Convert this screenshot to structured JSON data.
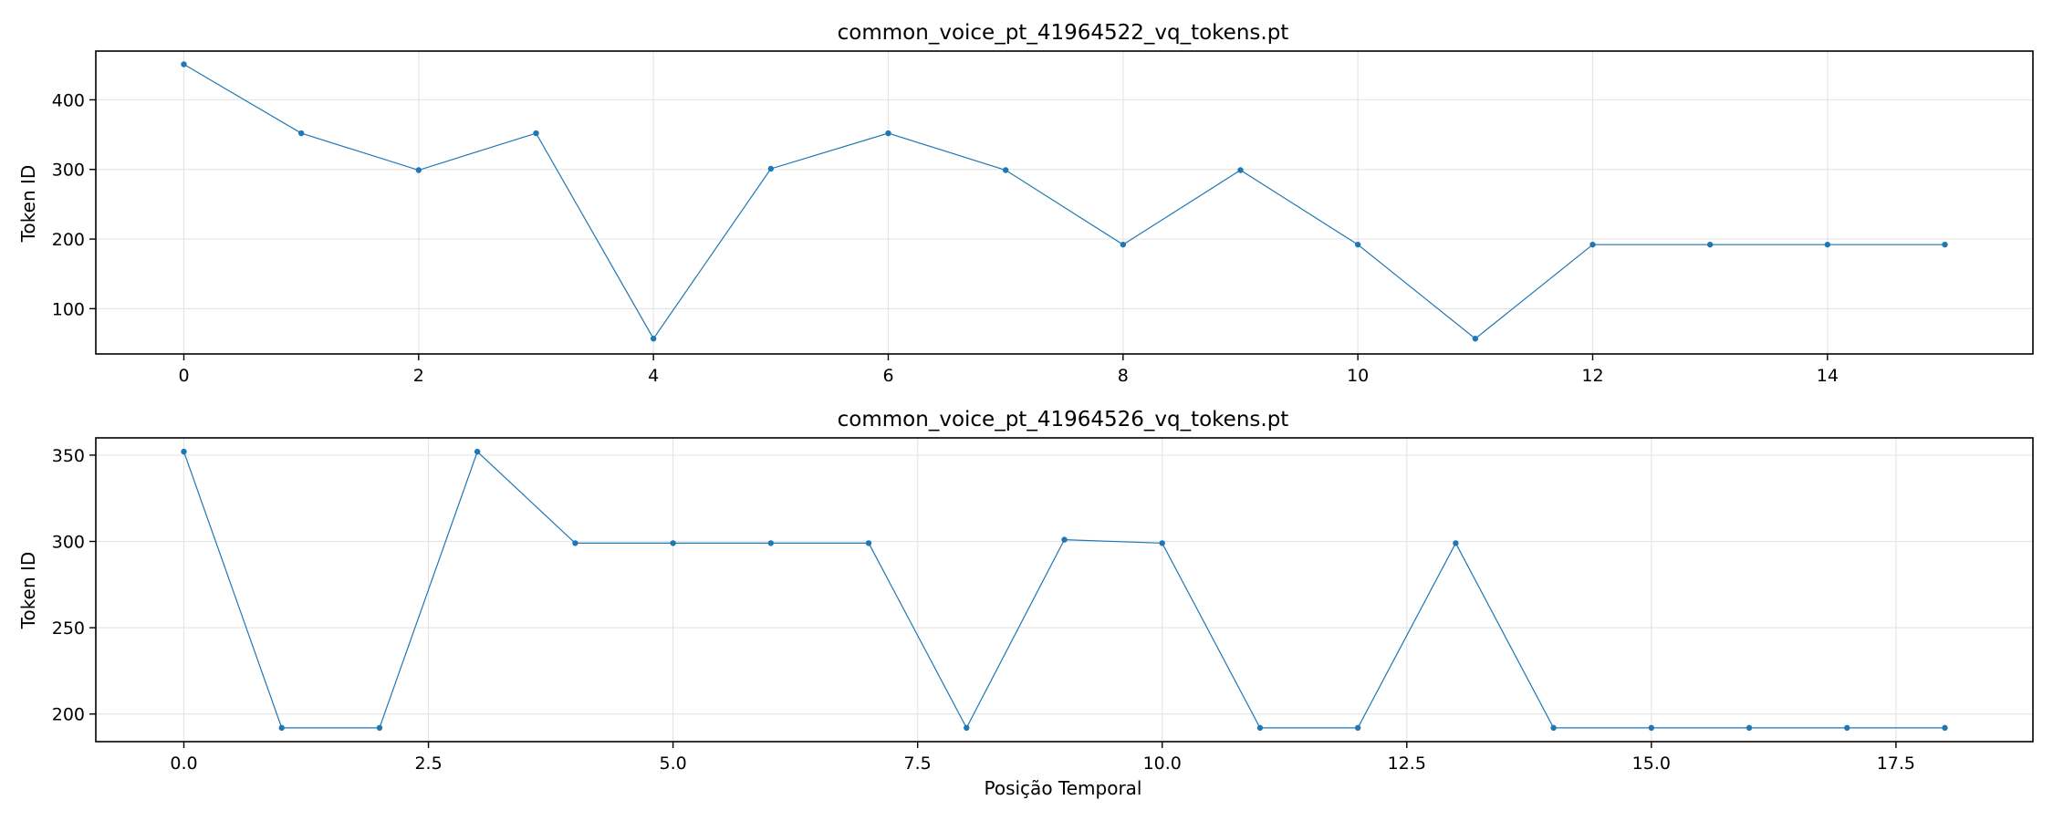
{
  "chart_data": [
    {
      "type": "line",
      "title": "common_voice_pt_41964522_vq_tokens.pt",
      "xlabel": "",
      "ylabel": "Token ID",
      "xlim": [
        -0.75,
        15.75
      ],
      "ylim": [
        35,
        470
      ],
      "xticks": [
        0,
        2,
        4,
        6,
        8,
        10,
        12,
        14
      ],
      "xtick_labels": [
        "0",
        "2",
        "4",
        "6",
        "8",
        "10",
        "12",
        "14"
      ],
      "yticks": [
        100,
        200,
        300,
        400
      ],
      "ytick_labels": [
        "100",
        "200",
        "300",
        "400"
      ],
      "grid": true,
      "color": "#1f77b4",
      "x": [
        0,
        1,
        2,
        3,
        4,
        5,
        6,
        7,
        8,
        9,
        10,
        11,
        12,
        13,
        14,
        15
      ],
      "values": [
        451,
        352,
        299,
        352,
        57,
        301,
        352,
        299,
        192,
        299,
        192,
        57,
        192,
        192,
        192,
        192
      ]
    },
    {
      "type": "line",
      "title": "common_voice_pt_41964526_vq_tokens.pt",
      "xlabel": "Posição Temporal",
      "ylabel": "Token ID",
      "xlim": [
        -0.9,
        18.9
      ],
      "ylim": [
        184,
        360
      ],
      "xticks": [
        0,
        2.5,
        5,
        7.5,
        10,
        12.5,
        15,
        17.5
      ],
      "xtick_labels": [
        "0.0",
        "2.5",
        "5.0",
        "7.5",
        "10.0",
        "12.5",
        "15.0",
        "17.5"
      ],
      "yticks": [
        200,
        250,
        300,
        350
      ],
      "ytick_labels": [
        "200",
        "250",
        "300",
        "350"
      ],
      "grid": true,
      "color": "#1f77b4",
      "x": [
        0,
        1,
        2,
        3,
        4,
        5,
        6,
        7,
        8,
        9,
        10,
        11,
        12,
        13,
        14,
        15,
        16,
        17,
        18
      ],
      "values": [
        352,
        192,
        192,
        352,
        299,
        299,
        299,
        299,
        192,
        301,
        299,
        192,
        192,
        299,
        192,
        192,
        192,
        192,
        192
      ]
    }
  ]
}
